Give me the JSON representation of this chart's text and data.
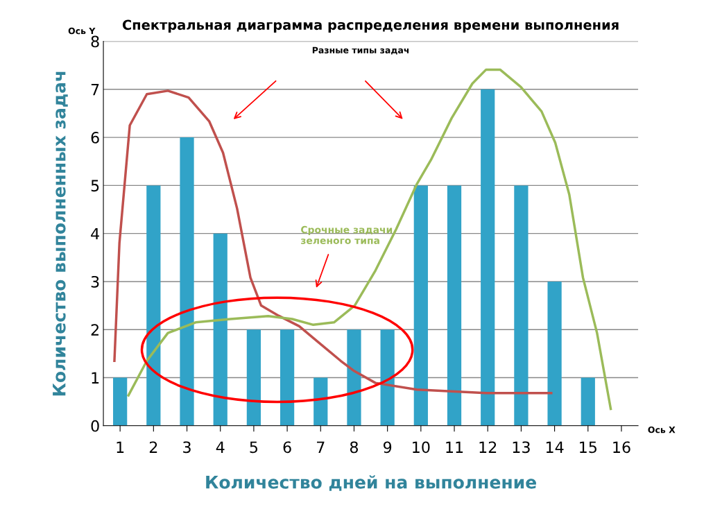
{
  "chart_data": {
    "type": "bar",
    "title": "Спектральная диаграмма распределения времени выполнения",
    "xlabel": "Количество дней на выполнение",
    "ylabel": "Количество выполненных задач",
    "xlim": [
      0.5,
      16.5
    ],
    "xticks": [
      1,
      2,
      3,
      4,
      5,
      6,
      7,
      8,
      9,
      10,
      11,
      12,
      13,
      14,
      15,
      16
    ],
    "ylim": [
      0,
      8
    ],
    "yticks": [
      0,
      1,
      2,
      3,
      4,
      5,
      6,
      7,
      8
    ],
    "grid": "y",
    "legend": false,
    "series": [
      {
        "color": "#31a3c8",
        "x": [
          1,
          2,
          3,
          4,
          5,
          6,
          7,
          8,
          9,
          10,
          11,
          12,
          13,
          14,
          15
        ],
        "values": [
          1,
          5,
          6,
          4,
          2,
          2,
          1,
          2,
          2,
          5,
          5,
          7,
          5,
          3,
          1
        ]
      },
      {
        "type": "line",
        "color": "#c0504d",
        "x": [
          0.83,
          0.98,
          1.29,
          1.8,
          2.43,
          3.05,
          3.67,
          4.08,
          4.5,
          4.9,
          5.22,
          5.74,
          6.36,
          6.98,
          7.6,
          8.0,
          8.64,
          9.88,
          11.95,
          13.9
        ],
        "values": [
          1.35,
          3.8,
          6.25,
          6.9,
          6.97,
          6.83,
          6.33,
          5.68,
          4.52,
          3.08,
          2.5,
          2.29,
          2.07,
          1.71,
          1.35,
          1.14,
          0.89,
          0.75,
          0.68,
          0.68
        ]
      },
      {
        "type": "line",
        "color": "#9bbb59",
        "x": [
          1.25,
          1.8,
          2.43,
          3.26,
          4.3,
          5.43,
          6.15,
          6.78,
          7.4,
          8.02,
          8.64,
          9.26,
          9.88,
          10.3,
          10.92,
          11.54,
          11.95,
          12.37,
          12.99,
          13.61,
          14.02,
          14.44,
          14.85,
          15.27,
          15.68
        ],
        "values": [
          0.63,
          1.35,
          1.93,
          2.15,
          2.22,
          2.28,
          2.22,
          2.1,
          2.15,
          2.5,
          3.23,
          4.09,
          5.03,
          5.53,
          6.4,
          7.12,
          7.41,
          7.41,
          7.05,
          6.54,
          5.89,
          4.81,
          3.08,
          1.93,
          0.35
        ]
      }
    ],
    "marker": "none",
    "line_style": "solid",
    "annotations": [
      "Разные типы задач",
      "Срочные задачи зеленого типа",
      "Ось Y",
      "Ось X"
    ]
  }
}
